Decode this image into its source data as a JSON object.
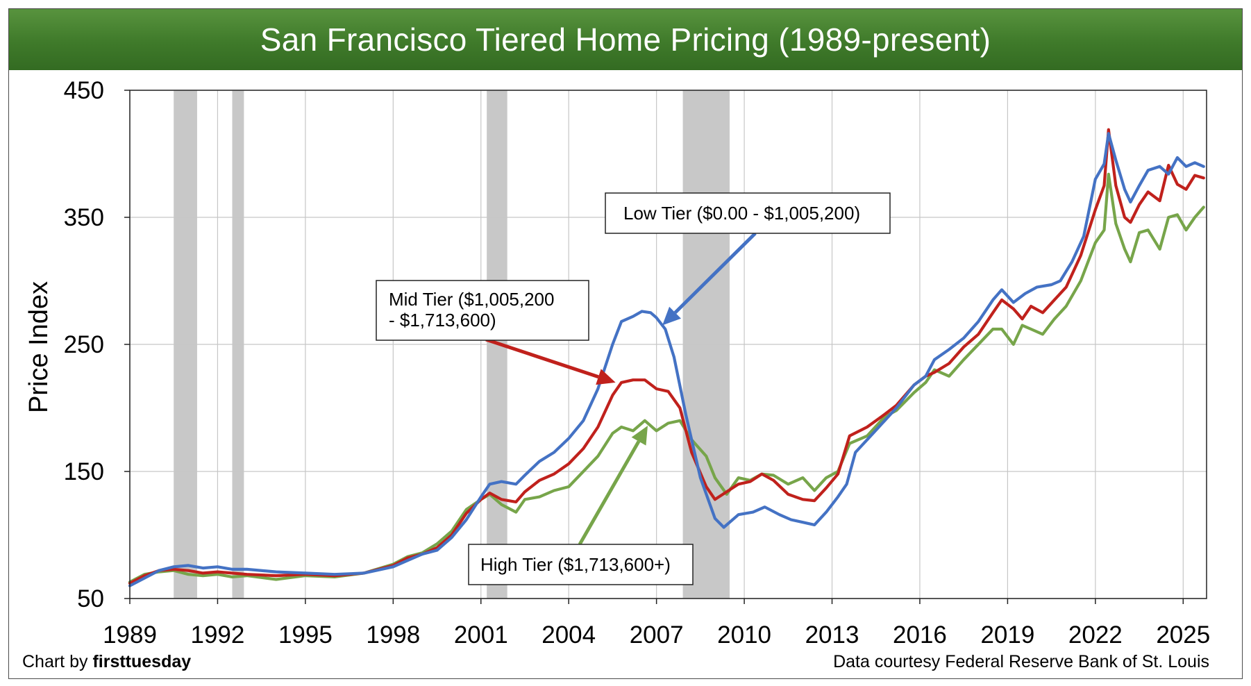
{
  "chart_data": {
    "type": "line",
    "title": "San Francisco Tiered Home Pricing (1989-present)",
    "xlabel": "",
    "ylabel": "Price Index",
    "xlim": [
      1989,
      2025.8
    ],
    "ylim": [
      50,
      450
    ],
    "x_ticks": [
      "1989",
      "1992",
      "1995",
      "1998",
      "2001",
      "2004",
      "2007",
      "2010",
      "2013",
      "2016",
      "2019",
      "2022",
      "2025"
    ],
    "y_ticks": [
      50,
      150,
      250,
      350,
      450
    ],
    "grid": true,
    "recessions": [
      [
        1990.5,
        1991.3
      ],
      [
        1992.5,
        1992.9
      ],
      [
        2001.2,
        2001.9
      ],
      [
        2007.9,
        2009.5
      ]
    ],
    "series": [
      {
        "name": "Low Tier ($0.00 - $1,005,200)",
        "color": "#4472c4",
        "points": [
          [
            1989.0,
            60
          ],
          [
            1989.5,
            66
          ],
          [
            1990.0,
            72
          ],
          [
            1990.5,
            75
          ],
          [
            1991.0,
            76
          ],
          [
            1991.5,
            74
          ],
          [
            1992.0,
            75
          ],
          [
            1992.5,
            73
          ],
          [
            1993.0,
            73
          ],
          [
            1994.0,
            71
          ],
          [
            1995.0,
            70
          ],
          [
            1996.0,
            69
          ],
          [
            1997.0,
            70
          ],
          [
            1998.0,
            75
          ],
          [
            1998.5,
            80
          ],
          [
            1999.0,
            85
          ],
          [
            1999.5,
            88
          ],
          [
            2000.0,
            98
          ],
          [
            2000.5,
            112
          ],
          [
            2001.0,
            130
          ],
          [
            2001.3,
            140
          ],
          [
            2001.7,
            142
          ],
          [
            2002.2,
            140
          ],
          [
            2002.5,
            147
          ],
          [
            2003.0,
            158
          ],
          [
            2003.5,
            165
          ],
          [
            2004.0,
            176
          ],
          [
            2004.5,
            190
          ],
          [
            2005.0,
            215
          ],
          [
            2005.5,
            250
          ],
          [
            2005.8,
            268
          ],
          [
            2006.2,
            272
          ],
          [
            2006.5,
            276
          ],
          [
            2006.8,
            275
          ],
          [
            2007.0,
            271
          ],
          [
            2007.3,
            262
          ],
          [
            2007.6,
            240
          ],
          [
            2008.0,
            195
          ],
          [
            2008.5,
            145
          ],
          [
            2009.0,
            113
          ],
          [
            2009.3,
            106
          ],
          [
            2009.8,
            116
          ],
          [
            2010.3,
            118
          ],
          [
            2010.7,
            122
          ],
          [
            2011.2,
            116
          ],
          [
            2011.6,
            112
          ],
          [
            2012.0,
            110
          ],
          [
            2012.4,
            108
          ],
          [
            2012.8,
            118
          ],
          [
            2013.2,
            130
          ],
          [
            2013.5,
            140
          ],
          [
            2013.8,
            165
          ],
          [
            2014.2,
            175
          ],
          [
            2014.8,
            190
          ],
          [
            2015.2,
            200
          ],
          [
            2015.8,
            218
          ],
          [
            2016.2,
            225
          ],
          [
            2016.5,
            238
          ],
          [
            2017.0,
            246
          ],
          [
            2017.5,
            255
          ],
          [
            2018.0,
            268
          ],
          [
            2018.5,
            285
          ],
          [
            2018.8,
            293
          ],
          [
            2019.2,
            283
          ],
          [
            2019.6,
            290
          ],
          [
            2020.0,
            295
          ],
          [
            2020.5,
            297
          ],
          [
            2020.8,
            300
          ],
          [
            2021.2,
            315
          ],
          [
            2021.6,
            335
          ],
          [
            2022.0,
            380
          ],
          [
            2022.3,
            392
          ],
          [
            2022.45,
            416
          ],
          [
            2022.7,
            395
          ],
          [
            2023.0,
            372
          ],
          [
            2023.2,
            362
          ],
          [
            2023.5,
            375
          ],
          [
            2023.8,
            387
          ],
          [
            2024.2,
            390
          ],
          [
            2024.5,
            384
          ],
          [
            2024.8,
            397
          ],
          [
            2025.1,
            390
          ],
          [
            2025.4,
            393
          ],
          [
            2025.7,
            390
          ]
        ]
      },
      {
        "name": "Mid Tier ($1,005,200 - $1,713,600)",
        "color": "#c0211c",
        "points": [
          [
            1989.0,
            62
          ],
          [
            1989.5,
            68
          ],
          [
            1990.0,
            72
          ],
          [
            1990.5,
            73
          ],
          [
            1991.0,
            72
          ],
          [
            1991.5,
            70
          ],
          [
            1992.0,
            71
          ],
          [
            1992.5,
            70
          ],
          [
            1993.0,
            69
          ],
          [
            1994.0,
            68
          ],
          [
            1995.0,
            69
          ],
          [
            1996.0,
            68
          ],
          [
            1997.0,
            70
          ],
          [
            1998.0,
            76
          ],
          [
            1998.5,
            82
          ],
          [
            1999.0,
            85
          ],
          [
            1999.5,
            90
          ],
          [
            2000.0,
            100
          ],
          [
            2000.5,
            117
          ],
          [
            2001.0,
            128
          ],
          [
            2001.3,
            133
          ],
          [
            2001.7,
            128
          ],
          [
            2002.2,
            126
          ],
          [
            2002.5,
            134
          ],
          [
            2003.0,
            143
          ],
          [
            2003.5,
            148
          ],
          [
            2004.0,
            156
          ],
          [
            2004.5,
            168
          ],
          [
            2005.0,
            185
          ],
          [
            2005.5,
            210
          ],
          [
            2005.8,
            220
          ],
          [
            2006.2,
            222
          ],
          [
            2006.6,
            222
          ],
          [
            2007.0,
            215
          ],
          [
            2007.4,
            213
          ],
          [
            2007.8,
            200
          ],
          [
            2008.2,
            165
          ],
          [
            2008.7,
            138
          ],
          [
            2009.0,
            128
          ],
          [
            2009.4,
            134
          ],
          [
            2009.8,
            140
          ],
          [
            2010.2,
            142
          ],
          [
            2010.6,
            148
          ],
          [
            2011.0,
            143
          ],
          [
            2011.5,
            132
          ],
          [
            2012.0,
            128
          ],
          [
            2012.4,
            127
          ],
          [
            2012.8,
            137
          ],
          [
            2013.2,
            148
          ],
          [
            2013.6,
            178
          ],
          [
            2014.2,
            185
          ],
          [
            2014.8,
            195
          ],
          [
            2015.2,
            202
          ],
          [
            2015.8,
            218
          ],
          [
            2016.2,
            225
          ],
          [
            2016.5,
            228
          ],
          [
            2017.0,
            235
          ],
          [
            2017.5,
            248
          ],
          [
            2018.0,
            258
          ],
          [
            2018.5,
            275
          ],
          [
            2018.8,
            285
          ],
          [
            2019.2,
            278
          ],
          [
            2019.5,
            270
          ],
          [
            2019.8,
            280
          ],
          [
            2020.2,
            275
          ],
          [
            2020.6,
            285
          ],
          [
            2021.0,
            295
          ],
          [
            2021.5,
            320
          ],
          [
            2022.0,
            356
          ],
          [
            2022.3,
            375
          ],
          [
            2022.45,
            419
          ],
          [
            2022.7,
            375
          ],
          [
            2023.0,
            350
          ],
          [
            2023.2,
            346
          ],
          [
            2023.5,
            360
          ],
          [
            2023.8,
            370
          ],
          [
            2024.2,
            363
          ],
          [
            2024.5,
            391
          ],
          [
            2024.8,
            376
          ],
          [
            2025.1,
            372
          ],
          [
            2025.4,
            383
          ],
          [
            2025.7,
            381
          ]
        ]
      },
      {
        "name": "High Tier ($1,713,600+)",
        "color": "#77a54a",
        "points": [
          [
            1989.0,
            63
          ],
          [
            1989.5,
            69
          ],
          [
            1990.0,
            71
          ],
          [
            1990.5,
            72
          ],
          [
            1991.0,
            69
          ],
          [
            1991.5,
            68
          ],
          [
            1992.0,
            69
          ],
          [
            1992.5,
            67
          ],
          [
            1993.0,
            68
          ],
          [
            1994.0,
            65
          ],
          [
            1995.0,
            68
          ],
          [
            1996.0,
            67
          ],
          [
            1997.0,
            70
          ],
          [
            1998.0,
            77
          ],
          [
            1998.5,
            83
          ],
          [
            1999.0,
            86
          ],
          [
            1999.5,
            93
          ],
          [
            2000.0,
            103
          ],
          [
            2000.5,
            120
          ],
          [
            2001.0,
            128
          ],
          [
            2001.3,
            132
          ],
          [
            2001.7,
            124
          ],
          [
            2002.2,
            118
          ],
          [
            2002.5,
            128
          ],
          [
            2003.0,
            130
          ],
          [
            2003.5,
            135
          ],
          [
            2004.0,
            138
          ],
          [
            2004.5,
            150
          ],
          [
            2005.0,
            162
          ],
          [
            2005.5,
            180
          ],
          [
            2005.8,
            185
          ],
          [
            2006.2,
            182
          ],
          [
            2006.6,
            190
          ],
          [
            2007.0,
            182
          ],
          [
            2007.4,
            188
          ],
          [
            2007.8,
            190
          ],
          [
            2008.2,
            175
          ],
          [
            2008.7,
            162
          ],
          [
            2009.0,
            145
          ],
          [
            2009.4,
            132
          ],
          [
            2009.8,
            145
          ],
          [
            2010.2,
            143
          ],
          [
            2010.6,
            148
          ],
          [
            2011.0,
            147
          ],
          [
            2011.5,
            140
          ],
          [
            2012.0,
            145
          ],
          [
            2012.4,
            135
          ],
          [
            2012.8,
            145
          ],
          [
            2013.2,
            150
          ],
          [
            2013.6,
            172
          ],
          [
            2014.2,
            178
          ],
          [
            2014.8,
            193
          ],
          [
            2015.2,
            198
          ],
          [
            2015.8,
            212
          ],
          [
            2016.2,
            220
          ],
          [
            2016.5,
            230
          ],
          [
            2017.0,
            225
          ],
          [
            2017.5,
            238
          ],
          [
            2018.0,
            250
          ],
          [
            2018.5,
            262
          ],
          [
            2018.8,
            262
          ],
          [
            2019.2,
            250
          ],
          [
            2019.5,
            265
          ],
          [
            2019.8,
            262
          ],
          [
            2020.2,
            258
          ],
          [
            2020.6,
            270
          ],
          [
            2021.0,
            280
          ],
          [
            2021.5,
            300
          ],
          [
            2022.0,
            330
          ],
          [
            2022.3,
            340
          ],
          [
            2022.45,
            384
          ],
          [
            2022.7,
            345
          ],
          [
            2023.0,
            325
          ],
          [
            2023.2,
            315
          ],
          [
            2023.5,
            338
          ],
          [
            2023.8,
            340
          ],
          [
            2024.2,
            325
          ],
          [
            2024.5,
            350
          ],
          [
            2024.8,
            352
          ],
          [
            2025.1,
            340
          ],
          [
            2025.4,
            350
          ],
          [
            2025.7,
            358
          ]
        ]
      }
    ],
    "annotations": [
      {
        "lines": [
          "Low Tier ($0.00 - $1,005,200)"
        ],
        "color": "#4472c4",
        "arrow_to": [
          2007.2,
          265
        ]
      },
      {
        "lines": [
          "Mid Tier ($1,005,200",
          "- $1,713,600)"
        ],
        "color": "#c0211c",
        "arrow_to": [
          2005.6,
          220
        ]
      },
      {
        "lines": [
          "High Tier ($1,713,600+)"
        ],
        "color": "#77a54a",
        "arrow_to": [
          2006.7,
          186
        ]
      }
    ]
  },
  "footer": {
    "left_prefix": "Chart by ",
    "left_brand": "firsttuesday",
    "right": "Data courtesy Federal Reserve Bank of St. Louis"
  }
}
